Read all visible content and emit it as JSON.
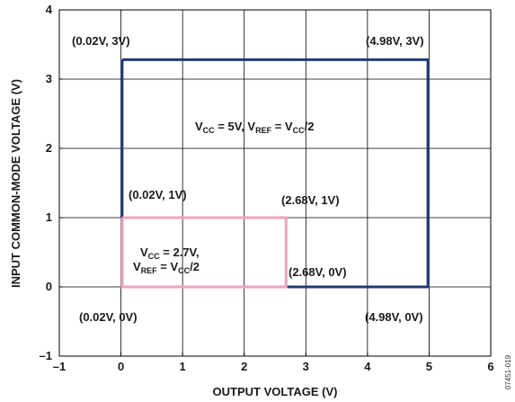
{
  "chart_data": {
    "type": "line",
    "xlabel": "OUTPUT VOLTAGE (V)",
    "ylabel": "INPUT COMMON-MODE VOLTAGE (V)",
    "xlim": [
      -1,
      6
    ],
    "ylim": [
      -1,
      4
    ],
    "x_ticks": [
      "–1",
      "0",
      "1",
      "2",
      "3",
      "4",
      "5",
      "6"
    ],
    "y_ticks": [
      "–1",
      "0",
      "1",
      "2",
      "3",
      "4"
    ],
    "grid": true,
    "series": [
      {
        "color": "#1f3a7a",
        "points": [
          [
            0.02,
            3.28
          ],
          [
            4.98,
            3.28
          ],
          [
            4.98,
            0
          ],
          [
            0.02,
            0
          ],
          [
            0.02,
            3.28
          ]
        ]
      },
      {
        "color": "#f0a3b8",
        "points": [
          [
            0.02,
            1
          ],
          [
            2.68,
            1
          ],
          [
            2.68,
            0
          ],
          [
            0.02,
            0
          ],
          [
            0.02,
            1
          ]
        ]
      }
    ],
    "annotations": [
      {
        "text": "(0.02V, 3V)"
      },
      {
        "text": "(4.98V, 3V)"
      },
      {
        "text": "(0.02V, 1V)"
      },
      {
        "text": "(2.68V, 1V)"
      },
      {
        "text": "(2.68V, 0V)"
      },
      {
        "text": "(0.02V, 0V)"
      },
      {
        "text": "(4.98V, 0V)"
      }
    ],
    "region_labels": {
      "big": {
        "a": "V",
        "a_sub": "CC",
        "b": " = 5V, V",
        "b_sub": "REF",
        "c": " = V",
        "c_sub": "CC",
        "d": "/2"
      },
      "small_line1": {
        "a": "V",
        "a_sub": "CC",
        "b": " = 2.7V,"
      },
      "small_line2": {
        "a": "V",
        "a_sub": "REF",
        "b": " = V",
        "b_sub": "CC",
        "c": "/2"
      }
    },
    "figure_id": "07451-019"
  }
}
